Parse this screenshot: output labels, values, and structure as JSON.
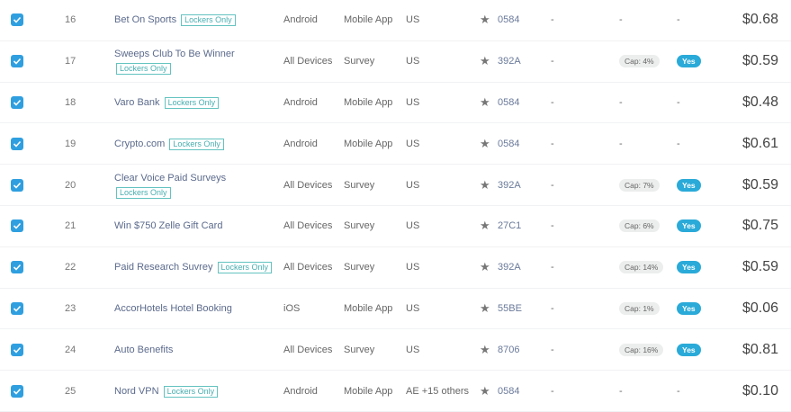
{
  "badge_label": "Lockers Only",
  "star_icon": "star-icon",
  "accent": "#2f9fe0",
  "rows": [
    {
      "num": "16",
      "name": "Bet On Sports",
      "locker": true,
      "device": "Android",
      "type": "Mobile App",
      "country": "US",
      "id": "0584",
      "col1": "-",
      "cap": null,
      "col2": "-",
      "yes": null,
      "col3": "-",
      "price": "$0.68"
    },
    {
      "num": "17",
      "name": "Sweeps Club To Be Winner",
      "locker": true,
      "device": "All Devices",
      "type": "Survey",
      "country": "US",
      "id": "392A",
      "col1": "-",
      "cap": "Cap: 4%",
      "yes": "Yes",
      "price": "$0.59"
    },
    {
      "num": "18",
      "name": "Varo Bank",
      "locker": true,
      "device": "Android",
      "type": "Mobile App",
      "country": "US",
      "id": "0584",
      "col1": "-",
      "cap": null,
      "col2": "-",
      "yes": null,
      "col3": "-",
      "price": "$0.48"
    },
    {
      "num": "19",
      "name": "Crypto.com",
      "locker": true,
      "device": "Android",
      "type": "Mobile App",
      "country": "US",
      "id": "0584",
      "col1": "-",
      "cap": null,
      "col2": "-",
      "yes": null,
      "col3": "-",
      "price": "$0.61"
    },
    {
      "num": "20",
      "name": "Clear Voice Paid Surveys",
      "locker": true,
      "device": "All Devices",
      "type": "Survey",
      "country": "US",
      "id": "392A",
      "col1": "-",
      "cap": "Cap: 7%",
      "yes": "Yes",
      "price": "$0.59"
    },
    {
      "num": "21",
      "name": "Win $750 Zelle Gift Card",
      "locker": false,
      "device": "All Devices",
      "type": "Survey",
      "country": "US",
      "id": "27C1",
      "col1": "-",
      "cap": "Cap: 6%",
      "yes": "Yes",
      "price": "$0.75"
    },
    {
      "num": "22",
      "name": "Paid Research Suvrey",
      "locker": true,
      "device": "All Devices",
      "type": "Survey",
      "country": "US",
      "id": "392A",
      "col1": "-",
      "cap": "Cap: 14%",
      "yes": "Yes",
      "price": "$0.59"
    },
    {
      "num": "23",
      "name": "AccorHotels Hotel Booking",
      "locker": false,
      "device": "iOS",
      "type": "Mobile App",
      "country": "US",
      "id": "55BE",
      "col1": "-",
      "cap": "Cap: 1%",
      "yes": "Yes",
      "price": "$0.06"
    },
    {
      "num": "24",
      "name": "Auto Benefits",
      "locker": false,
      "device": "All Devices",
      "type": "Survey",
      "country": "US",
      "id": "8706",
      "col1": "-",
      "cap": "Cap: 16%",
      "yes": "Yes",
      "price": "$0.81"
    },
    {
      "num": "25",
      "name": "Nord VPN",
      "locker": true,
      "device": "Android",
      "type": "Mobile App",
      "country": "AE +15 others",
      "id": "0584",
      "col1": "-",
      "cap": null,
      "col2": "-",
      "yes": null,
      "col3": "-",
      "price": "$0.10"
    }
  ]
}
